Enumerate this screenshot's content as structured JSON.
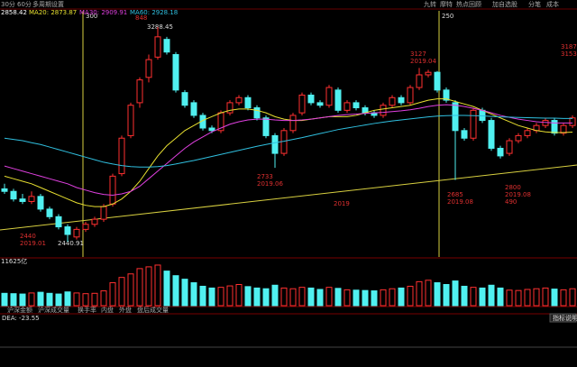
{
  "chart_data": {
    "type": "candlestick",
    "toolbar": [
      "30分",
      "60分",
      "多周期",
      "设置"
    ],
    "buttons": [
      "九转",
      "摩特",
      "热点回顾",
      "加自选股",
      "分笔",
      "成本"
    ],
    "last": "2858.42",
    "markers": [
      "300",
      "250"
    ],
    "annotations": [
      "3288.45",
      "2440.91",
      "2440",
      "2019.01",
      "2733",
      "2019.06",
      "2019",
      "3127",
      "2019.04",
      "2685",
      "2019.08",
      "2800",
      "2019.08",
      "490",
      "3187",
      "3153",
      "848"
    ],
    "ylim": [
      2381,
      3342
    ],
    "open": [
      2650,
      2640,
      2610,
      2600,
      2620,
      2570,
      2540,
      2500,
      2460,
      2490,
      2510,
      2530,
      2590,
      2710,
      2860,
      2990,
      3090,
      3170,
      3240,
      3180,
      3030,
      2990,
      2940,
      2890,
      2880,
      2950,
      2990,
      3010,
      2970,
      2930,
      2860,
      2790,
      2880,
      2950,
      3020,
      2990,
      2980,
      3040,
      2960,
      2990,
      2970,
      2950,
      2940,
      2980,
      3010,
      2990,
      3050,
      3100,
      3110,
      3040,
      2990,
      2880,
      2850,
      2960,
      2920,
      2810,
      2790,
      2840,
      2860,
      2880,
      2900,
      2920,
      2870,
      2900
    ],
    "high": [
      2670,
      2650,
      2630,
      2640,
      2630,
      2580,
      2550,
      2510,
      2500,
      2520,
      2540,
      2590,
      2710,
      2860,
      2990,
      3090,
      3180,
      3288.45,
      3250,
      3190,
      3040,
      3000,
      2950,
      2900,
      2960,
      3000,
      3020,
      3020,
      2980,
      2940,
      2870,
      2890,
      2950,
      3030,
      3030,
      3000,
      3060,
      3050,
      3000,
      3000,
      2980,
      2960,
      2990,
      3020,
      3020,
      3060,
      3127,
      3120,
      3115,
      3050,
      3000,
      2890,
      2970,
      2970,
      2930,
      2820,
      2850,
      2870,
      2890,
      2910,
      2930,
      2930,
      2910,
      2940
    ],
    "low": [
      2630,
      2600,
      2590,
      2590,
      2560,
      2530,
      2490,
      2440.91,
      2450,
      2480,
      2500,
      2520,
      2580,
      2700,
      2850,
      2970,
      3070,
      3160,
      3180,
      3030,
      2970,
      2930,
      2880,
      2870,
      2870,
      2940,
      2980,
      2960,
      2920,
      2850,
      2733,
      2780,
      2870,
      2940,
      2980,
      2970,
      2970,
      2950,
      2950,
      2960,
      2940,
      2930,
      2930,
      2970,
      2980,
      2980,
      3040,
      3090,
      3030,
      2990,
      2685,
      2840,
      2840,
      2910,
      2800,
      2770,
      2780,
      2830,
      2850,
      2870,
      2890,
      2860,
      2860,
      2890
    ],
    "close": [
      2640,
      2610,
      2600,
      2620,
      2570,
      2540,
      2500,
      2470,
      2490,
      2510,
      2530,
      2580,
      2700,
      2850,
      2980,
      3080,
      3160,
      3250,
      3190,
      3040,
      2980,
      2940,
      2890,
      2880,
      2950,
      2990,
      3010,
      2970,
      2930,
      2860,
      2790,
      2880,
      2940,
      3020,
      2990,
      2980,
      3050,
      2960,
      2990,
      2970,
      2950,
      2940,
      2980,
      3010,
      2990,
      3050,
      3100,
      3110,
      3040,
      3000,
      2880,
      2850,
      2960,
      2920,
      2810,
      2780,
      2840,
      2860,
      2880,
      2900,
      2920,
      2870,
      2900,
      2930
    ],
    "series": [
      {
        "name": "MA20: 2873.87",
        "color": "#e8e030",
        "values": [
          2700,
          2690,
          2680,
          2670,
          2655,
          2640,
          2625,
          2610,
          2595,
          2585,
          2580,
          2580,
          2590,
          2610,
          2640,
          2680,
          2730,
          2780,
          2820,
          2850,
          2880,
          2900,
          2920,
          2935,
          2950,
          2960,
          2965,
          2965,
          2960,
          2950,
          2935,
          2925,
          2920,
          2920,
          2925,
          2930,
          2935,
          2935,
          2935,
          2940,
          2950,
          2960,
          2965,
          2970,
          2975,
          2980,
          2990,
          3000,
          3005,
          3005,
          2995,
          2985,
          2975,
          2960,
          2945,
          2930,
          2915,
          2900,
          2890,
          2880,
          2875,
          2872,
          2872,
          2874
        ]
      },
      {
        "name": "MA30: 2909.91",
        "color": "#e040e0",
        "values": [
          2740,
          2730,
          2720,
          2710,
          2700,
          2690,
          2680,
          2670,
          2655,
          2645,
          2635,
          2628,
          2625,
          2630,
          2640,
          2660,
          2690,
          2720,
          2750,
          2780,
          2810,
          2835,
          2855,
          2875,
          2890,
          2905,
          2915,
          2922,
          2925,
          2925,
          2922,
          2920,
          2920,
          2922,
          2925,
          2930,
          2935,
          2940,
          2943,
          2945,
          2948,
          2950,
          2952,
          2955,
          2958,
          2962,
          2968,
          2975,
          2980,
          2982,
          2980,
          2975,
          2968,
          2960,
          2950,
          2940,
          2932,
          2925,
          2920,
          2915,
          2912,
          2910,
          2910,
          2910
        ]
      },
      {
        "name": "MA60: 2928.18",
        "color": "#30c0e0",
        "values": [
          2850,
          2845,
          2840,
          2832,
          2825,
          2815,
          2805,
          2795,
          2785,
          2775,
          2765,
          2755,
          2748,
          2742,
          2738,
          2736,
          2736,
          2738,
          2742,
          2748,
          2755,
          2762,
          2770,
          2778,
          2786,
          2794,
          2802,
          2810,
          2818,
          2825,
          2832,
          2838,
          2845,
          2852,
          2860,
          2868,
          2876,
          2884,
          2890,
          2896,
          2902,
          2908,
          2913,
          2918,
          2922,
          2926,
          2930,
          2934,
          2937,
          2939,
          2940,
          2940,
          2939,
          2938,
          2936,
          2934,
          2933,
          2932,
          2931,
          2930,
          2929,
          2929,
          2928,
          2928
        ]
      }
    ],
    "volume_label": "11625亿",
    "vol_ylim": [
      0,
      12000
    ],
    "volume": [
      3500,
      3400,
      3300,
      3600,
      3800,
      3500,
      3300,
      3900,
      3600,
      3400,
      3500,
      4200,
      6500,
      8000,
      9000,
      10500,
      11000,
      11500,
      9800,
      8500,
      7500,
      6500,
      5500,
      5000,
      5200,
      5600,
      6000,
      5400,
      5000,
      4800,
      5800,
      5000,
      4800,
      5200,
      5000,
      4600,
      5200,
      4900,
      4500,
      4400,
      4300,
      4200,
      4500,
      4800,
      5000,
      5500,
      6800,
      7200,
      6500,
      6000,
      7000,
      5500,
      5200,
      5000,
      5800,
      5000,
      4400,
      4300,
      4600,
      4800,
      5000,
      4700,
      4500,
      4800
    ],
    "tabs": [
      "沪深金额",
      "沪深成交量",
      "换手率",
      "内盘",
      "外盘",
      "盘后成交量"
    ],
    "macd_label": "DEA: -23.55",
    "help": "指标说明"
  }
}
